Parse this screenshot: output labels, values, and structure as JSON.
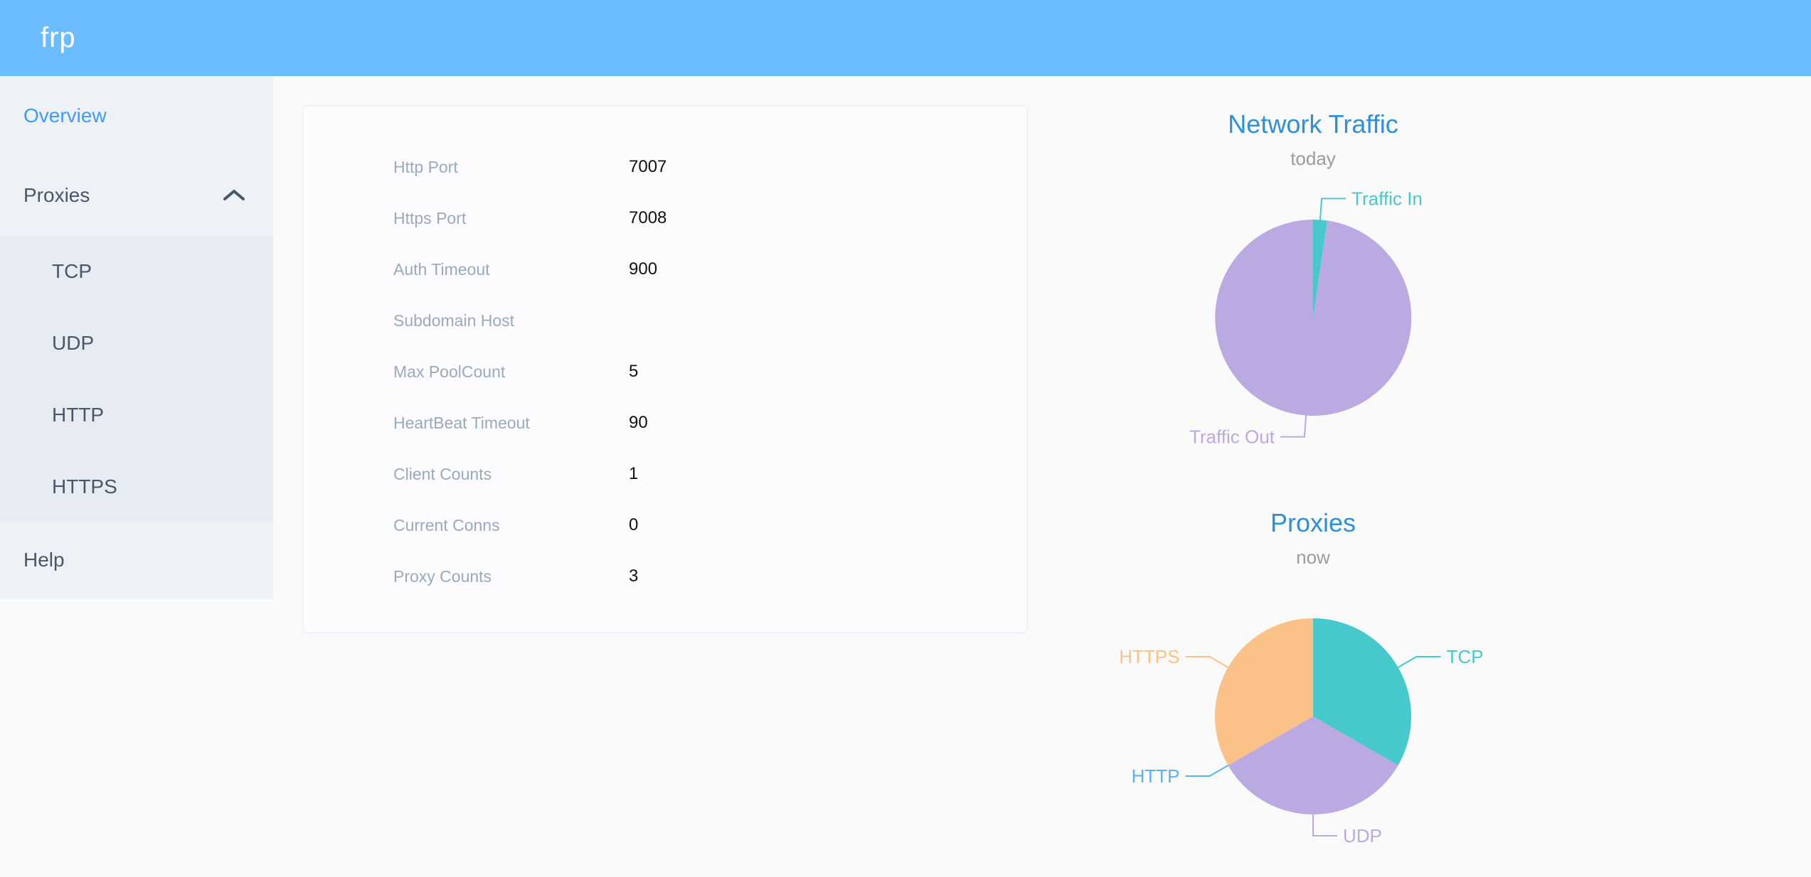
{
  "app": {
    "logo": "frp"
  },
  "colors": {
    "header_bg": "#6cbdff",
    "sidebar_bg": "#eef1f6",
    "submenu_bg": "#e7ebf2",
    "sidebar_text": "#48576a",
    "active_item": "#3f9cfa",
    "chart_title": "#2e90d8",
    "teal": "#47c9cc",
    "purple": "#bbaae2",
    "light_blue": "#5ab1ef",
    "orange": "#fac189"
  },
  "sidebar": {
    "items": [
      {
        "label": "Overview",
        "active": true
      },
      {
        "label": "Proxies",
        "expanded": true,
        "children": [
          {
            "label": "TCP"
          },
          {
            "label": "UDP"
          },
          {
            "label": "HTTP"
          },
          {
            "label": "HTTPS"
          }
        ]
      },
      {
        "label": "Help"
      }
    ]
  },
  "overview_card": {
    "rows": [
      {
        "label": "Http Port",
        "value": "7007"
      },
      {
        "label": "Https Port",
        "value": "7008"
      },
      {
        "label": "Auth Timeout",
        "value": "900"
      },
      {
        "label": "Subdomain Host",
        "value": ""
      },
      {
        "label": "Max PoolCount",
        "value": "5"
      },
      {
        "label": "HeartBeat Timeout",
        "value": "90"
      },
      {
        "label": "Client Counts",
        "value": "1"
      },
      {
        "label": "Current Conns",
        "value": "0"
      },
      {
        "label": "Proxy Counts",
        "value": "3"
      }
    ]
  },
  "chart_data": [
    {
      "type": "pie",
      "title": "Network Traffic",
      "subtitle": "today",
      "start_angle_deg": 0,
      "label_position": "outside",
      "legend": "none",
      "slices": [
        {
          "label": "Traffic In",
          "percent": 2.3,
          "color": "#47c9cc"
        },
        {
          "label": "Traffic Out",
          "percent": 97.7,
          "color": "#bbaae2"
        }
      ]
    },
    {
      "type": "pie",
      "title": "Proxies",
      "subtitle": "now",
      "start_angle_deg": 0,
      "label_position": "outside",
      "legend": "none",
      "slices": [
        {
          "label": "TCP",
          "value": 1,
          "color": "#47c9cc"
        },
        {
          "label": "UDP",
          "value": 1,
          "color": "#bbaae2"
        },
        {
          "label": "HTTP",
          "value": 0,
          "color": "#5ab1ef"
        },
        {
          "label": "HTTPS",
          "value": 1,
          "color": "#fac189"
        }
      ]
    }
  ]
}
